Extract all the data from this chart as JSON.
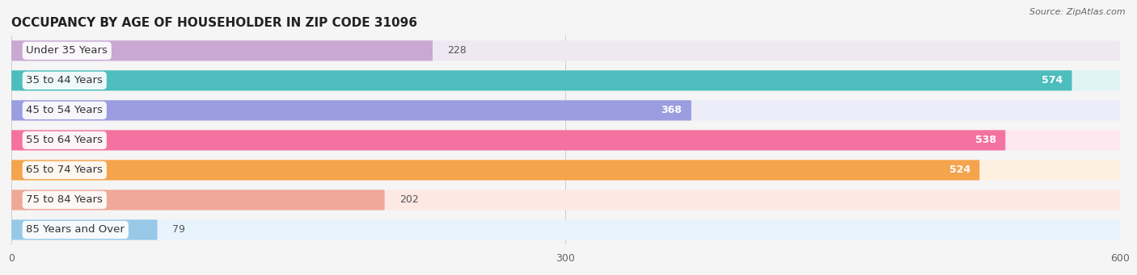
{
  "title": "OCCUPANCY BY AGE OF HOUSEHOLDER IN ZIP CODE 31096",
  "source": "Source: ZipAtlas.com",
  "categories": [
    "Under 35 Years",
    "35 to 44 Years",
    "45 to 54 Years",
    "55 to 64 Years",
    "65 to 74 Years",
    "75 to 84 Years",
    "85 Years and Over"
  ],
  "values": [
    228,
    574,
    368,
    538,
    524,
    202,
    79
  ],
  "bar_colors": [
    "#c9a8d4",
    "#4dbdbd",
    "#9b9de0",
    "#f472a0",
    "#f4a44c",
    "#f0a898",
    "#98c8e8"
  ],
  "bar_bg_colors": [
    "#ede8f2",
    "#e0f4f4",
    "#ecedf8",
    "#fde8f0",
    "#fdf0e0",
    "#fde8e4",
    "#e8f4fc"
  ],
  "xlim": [
    0,
    600
  ],
  "xticks": [
    0,
    300,
    600
  ],
  "title_fontsize": 11,
  "label_fontsize": 9.5,
  "value_fontsize": 9,
  "background_color": "#f5f5f5",
  "bar_height": 0.68,
  "rounding_size": 0.08
}
